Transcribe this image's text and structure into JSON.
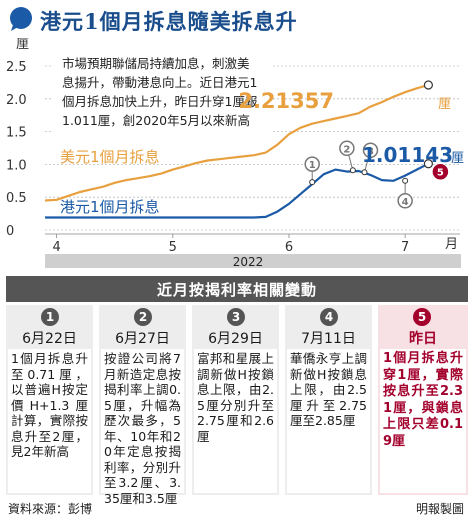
{
  "title": "港元1個月拆息隨美拆息升",
  "colors": {
    "title": "#1a4d8c",
    "usd_line": "#e8a03f",
    "hkd_line": "#1b5aa6",
    "highlight": "#a3002c",
    "event_marker": "#777777",
    "axis_band": "#cfcfcf"
  },
  "annotation": "市場預期聯儲局持續加息，刺激美息揚升，帶動港息向上。近日港元1個月拆息加快上升，昨日升穿1厘報1.011厘，創2020年5月以來新高",
  "annotation_lines": [
    "市場預期聯儲局持續加息，刺激美",
    "息揚升，帶動港息向上。近日港元1",
    "個月拆息加快上升，昨日升穿1厘報",
    "1.011厘，創2020年5月以來新高"
  ],
  "chart_data": {
    "type": "line",
    "title": "港元1個月拆息隨美拆息升",
    "xlabel": "月",
    "ylabel": "厘",
    "x_year": "2022",
    "ylim": [
      0,
      2.5
    ],
    "y_ticks": [
      "0",
      "0.5",
      "1.0",
      "1.5",
      "2.0",
      "2.5"
    ],
    "x_ticks": [
      {
        "label": "4",
        "month_pos": 4.0
      },
      {
        "label": "5",
        "month_pos": 5.0
      },
      {
        "label": "6",
        "month_pos": 6.0
      },
      {
        "label": "7",
        "month_pos": 7.0
      }
    ],
    "x_range": [
      3.9,
      7.3
    ],
    "series": [
      {
        "name": "美元1個月拆息",
        "end_label": "2.21357",
        "unit": "厘",
        "x": [
          3.9,
          4.0,
          4.1,
          4.2,
          4.3,
          4.4,
          4.5,
          4.6,
          4.7,
          4.8,
          4.9,
          5.0,
          5.1,
          5.2,
          5.3,
          5.4,
          5.5,
          5.6,
          5.7,
          5.8,
          5.9,
          6.0,
          6.1,
          6.2,
          6.3,
          6.4,
          6.5,
          6.6,
          6.7,
          6.8,
          6.9,
          7.0,
          7.1,
          7.2
        ],
        "values": [
          0.45,
          0.46,
          0.52,
          0.58,
          0.62,
          0.66,
          0.72,
          0.76,
          0.79,
          0.82,
          0.86,
          0.92,
          0.97,
          1.02,
          1.06,
          1.08,
          1.1,
          1.12,
          1.14,
          1.18,
          1.3,
          1.46,
          1.56,
          1.62,
          1.66,
          1.7,
          1.74,
          1.78,
          1.88,
          1.95,
          2.03,
          2.1,
          2.16,
          2.21
        ]
      },
      {
        "name": "港元1個月拆息",
        "end_label": "1.01143",
        "unit": "厘",
        "x": [
          3.9,
          4.0,
          4.1,
          4.2,
          4.3,
          4.4,
          4.5,
          4.6,
          4.7,
          4.8,
          4.9,
          5.0,
          5.1,
          5.2,
          5.3,
          5.4,
          5.5,
          5.6,
          5.7,
          5.8,
          5.9,
          6.0,
          6.1,
          6.2,
          6.3,
          6.4,
          6.5,
          6.6,
          6.7,
          6.8,
          6.9,
          7.0,
          7.1,
          7.2
        ],
        "values": [
          0.19,
          0.19,
          0.19,
          0.19,
          0.19,
          0.19,
          0.19,
          0.19,
          0.19,
          0.19,
          0.19,
          0.19,
          0.19,
          0.19,
          0.19,
          0.19,
          0.19,
          0.19,
          0.19,
          0.2,
          0.28,
          0.4,
          0.55,
          0.7,
          0.85,
          0.92,
          0.89,
          0.9,
          0.84,
          0.76,
          0.75,
          0.83,
          0.92,
          1.01
        ]
      }
    ],
    "event_markers": [
      {
        "label": "1",
        "x": 6.2,
        "y": 0.73
      },
      {
        "label": "2",
        "x": 6.55,
        "y": 0.91
      },
      {
        "label": "3",
        "x": 6.65,
        "y": 0.88
      },
      {
        "label": "4",
        "x": 7.0,
        "y": 0.75
      },
      {
        "label": "5",
        "x": 7.2,
        "y": 1.01
      }
    ]
  },
  "table": {
    "header": "近月按揭利率相關變動",
    "columns": [
      {
        "num": "1",
        "date": "6月22日",
        "body": "1個月拆息升至0.71厘，以普遍H按定價H+1.3厘計算，實際按息升至2厘，見2年新高"
      },
      {
        "num": "2",
        "date": "6月27日",
        "body": "按證公司將7月新造定息按揭利率上調0.5厘，升幅為歷次最多，5年、10年和20年定息按揭利率，分別升至3.2厘、3.35厘和3.5厘"
      },
      {
        "num": "3",
        "date": "6月29日",
        "body": "富邦和星展上調新做H按鎖息上限，由2.5厘分別升至2.75厘和2.6厘"
      },
      {
        "num": "4",
        "date": "7月11日",
        "body": "華僑永亨上調新做H按鎖息上限，由2.5厘升至2.75厘至2.85厘"
      },
      {
        "num": "5",
        "date": "昨日",
        "body": "1個月拆息升穿1厘，實際按息升至2.31厘，與鎖息上限只差0.19厘"
      }
    ]
  },
  "footer": {
    "source": "資料來源：彭博",
    "credit": "明報製圖"
  }
}
